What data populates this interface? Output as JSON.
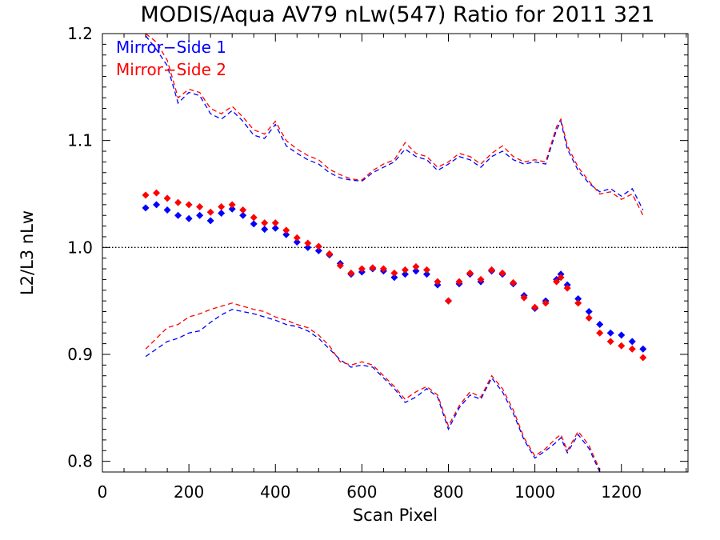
{
  "chart_data": {
    "type": "scatter",
    "title": "MODIS/Aqua AV79 nLw(547) Ratio for 2011 321",
    "xlabel": "Scan Pixel",
    "ylabel": "L2/L3 nLw",
    "xlim": [
      0,
      1354
    ],
    "ylim": [
      0.79,
      1.2
    ],
    "x_ticks": [
      0,
      200,
      400,
      600,
      800,
      1000,
      1200
    ],
    "x_tick_labels": [
      "0",
      "200",
      "400",
      "600",
      "800",
      "1000",
      "1200"
    ],
    "y_ticks": [
      0.8,
      0.9,
      1.0,
      1.1,
      1.2
    ],
    "y_tick_labels": [
      "0.8",
      "0.9",
      "1.0",
      "1.1",
      "1.2"
    ],
    "reference_line": {
      "y": 1.0,
      "style": "dotted",
      "color": "#000000"
    },
    "legend_position": "top-left",
    "colors": {
      "side1": "#0000ff",
      "side2": "#ff0000"
    },
    "series": [
      {
        "name": "Mirror−Side 1",
        "color": "#0000ff",
        "kind": "points",
        "x": [
          100,
          125,
          150,
          175,
          200,
          225,
          250,
          275,
          300,
          325,
          350,
          375,
          400,
          425,
          450,
          475,
          500,
          525,
          550,
          575,
          600,
          625,
          650,
          675,
          700,
          725,
          750,
          775,
          800,
          825,
          850,
          875,
          900,
          925,
          950,
          975,
          1000,
          1025,
          1050,
          1060,
          1075,
          1100,
          1125,
          1150,
          1175,
          1200,
          1225,
          1250
        ],
        "y": [
          1.037,
          1.04,
          1.035,
          1.03,
          1.027,
          1.03,
          1.025,
          1.032,
          1.036,
          1.03,
          1.022,
          1.017,
          1.018,
          1.012,
          1.005,
          1.0,
          0.997,
          0.993,
          0.985,
          0.975,
          0.977,
          0.98,
          0.978,
          0.972,
          0.975,
          0.978,
          0.975,
          0.965,
          0.95,
          0.966,
          0.975,
          0.968,
          0.978,
          0.975,
          0.966,
          0.955,
          0.943,
          0.95,
          0.97,
          0.975,
          0.965,
          0.952,
          0.94,
          0.928,
          0.92,
          0.918,
          0.912,
          0.905
        ]
      },
      {
        "name": "Mirror−Side 2",
        "color": "#ff0000",
        "kind": "points",
        "x": [
          100,
          125,
          150,
          175,
          200,
          225,
          250,
          275,
          300,
          325,
          350,
          375,
          400,
          425,
          450,
          475,
          500,
          525,
          550,
          575,
          600,
          625,
          650,
          675,
          700,
          725,
          750,
          775,
          800,
          825,
          850,
          875,
          900,
          925,
          950,
          975,
          1000,
          1025,
          1050,
          1060,
          1075,
          1100,
          1125,
          1150,
          1175,
          1200,
          1225,
          1250
        ],
        "y": [
          1.049,
          1.051,
          1.046,
          1.042,
          1.04,
          1.038,
          1.033,
          1.038,
          1.04,
          1.035,
          1.028,
          1.023,
          1.023,
          1.016,
          1.009,
          1.004,
          1.001,
          0.994,
          0.983,
          0.976,
          0.98,
          0.981,
          0.98,
          0.976,
          0.979,
          0.982,
          0.979,
          0.968,
          0.95,
          0.968,
          0.976,
          0.97,
          0.979,
          0.976,
          0.967,
          0.953,
          0.944,
          0.948,
          0.968,
          0.972,
          0.962,
          0.948,
          0.934,
          0.92,
          0.912,
          0.908,
          0.905,
          0.897
        ]
      },
      {
        "name": "",
        "color": "#0000ff",
        "kind": "dashed",
        "x": [
          100,
          125,
          150,
          175,
          200,
          225,
          250,
          275,
          300,
          325,
          350,
          375,
          400,
          425,
          450,
          475,
          500,
          525,
          550,
          575,
          600,
          625,
          650,
          675,
          700,
          725,
          750,
          775,
          800,
          825,
          850,
          875,
          900,
          925,
          950,
          975,
          1000,
          1025,
          1050,
          1060,
          1075,
          1100,
          1125,
          1150,
          1175,
          1200,
          1225,
          1250
        ],
        "y": [
          1.198,
          1.185,
          1.17,
          1.135,
          1.145,
          1.142,
          1.125,
          1.12,
          1.128,
          1.118,
          1.105,
          1.102,
          1.115,
          1.095,
          1.088,
          1.082,
          1.078,
          1.07,
          1.065,
          1.063,
          1.062,
          1.07,
          1.075,
          1.08,
          1.092,
          1.085,
          1.082,
          1.072,
          1.078,
          1.085,
          1.082,
          1.075,
          1.085,
          1.09,
          1.082,
          1.078,
          1.08,
          1.078,
          1.11,
          1.118,
          1.092,
          1.072,
          1.06,
          1.052,
          1.055,
          1.048,
          1.055,
          1.035
        ]
      },
      {
        "name": "",
        "color": "#ff0000",
        "kind": "dashed",
        "x": [
          100,
          125,
          150,
          175,
          200,
          225,
          250,
          275,
          300,
          325,
          350,
          375,
          400,
          425,
          450,
          475,
          500,
          525,
          550,
          575,
          600,
          625,
          650,
          675,
          700,
          725,
          750,
          775,
          800,
          825,
          850,
          875,
          900,
          925,
          950,
          975,
          1000,
          1025,
          1050,
          1060,
          1075,
          1100,
          1125,
          1150,
          1175,
          1200,
          1225,
          1250
        ],
        "y": [
          1.2,
          1.192,
          1.175,
          1.14,
          1.148,
          1.145,
          1.13,
          1.125,
          1.132,
          1.122,
          1.11,
          1.106,
          1.118,
          1.1,
          1.092,
          1.086,
          1.082,
          1.073,
          1.068,
          1.064,
          1.063,
          1.072,
          1.078,
          1.082,
          1.098,
          1.088,
          1.085,
          1.075,
          1.08,
          1.088,
          1.085,
          1.078,
          1.088,
          1.095,
          1.085,
          1.08,
          1.082,
          1.08,
          1.113,
          1.12,
          1.095,
          1.075,
          1.062,
          1.05,
          1.052,
          1.045,
          1.05,
          1.03
        ]
      },
      {
        "name": "",
        "color": "#0000ff",
        "kind": "dashed",
        "x": [
          100,
          125,
          150,
          175,
          200,
          225,
          250,
          275,
          300,
          325,
          350,
          375,
          400,
          425,
          450,
          475,
          500,
          525,
          550,
          575,
          600,
          625,
          650,
          675,
          700,
          725,
          750,
          775,
          800,
          825,
          850,
          875,
          900,
          925,
          950,
          975,
          1000,
          1025,
          1050,
          1060,
          1075,
          1100,
          1125,
          1150
        ],
        "y": [
          0.898,
          0.905,
          0.912,
          0.915,
          0.92,
          0.922,
          0.93,
          0.937,
          0.942,
          0.94,
          0.938,
          0.935,
          0.932,
          0.928,
          0.926,
          0.922,
          0.915,
          0.905,
          0.895,
          0.888,
          0.89,
          0.888,
          0.878,
          0.868,
          0.855,
          0.86,
          0.868,
          0.86,
          0.83,
          0.85,
          0.862,
          0.858,
          0.878,
          0.865,
          0.845,
          0.82,
          0.803,
          0.81,
          0.818,
          0.822,
          0.808,
          0.825,
          0.812,
          0.79
        ]
      },
      {
        "name": "",
        "color": "#ff0000",
        "kind": "dashed",
        "x": [
          100,
          125,
          150,
          175,
          200,
          225,
          250,
          275,
          300,
          325,
          350,
          375,
          400,
          425,
          450,
          475,
          500,
          525,
          550,
          575,
          600,
          625,
          650,
          675,
          700,
          725,
          750,
          775,
          800,
          825,
          850,
          875,
          900,
          925,
          950,
          975,
          1000,
          1025,
          1050,
          1060,
          1075,
          1100,
          1125,
          1150
        ],
        "y": [
          0.905,
          0.915,
          0.925,
          0.928,
          0.935,
          0.938,
          0.942,
          0.945,
          0.948,
          0.945,
          0.942,
          0.94,
          0.935,
          0.932,
          0.928,
          0.925,
          0.918,
          0.908,
          0.893,
          0.89,
          0.893,
          0.89,
          0.88,
          0.87,
          0.858,
          0.865,
          0.87,
          0.862,
          0.833,
          0.852,
          0.865,
          0.86,
          0.88,
          0.868,
          0.848,
          0.822,
          0.805,
          0.812,
          0.822,
          0.825,
          0.81,
          0.828,
          0.815,
          0.792
        ]
      }
    ]
  }
}
